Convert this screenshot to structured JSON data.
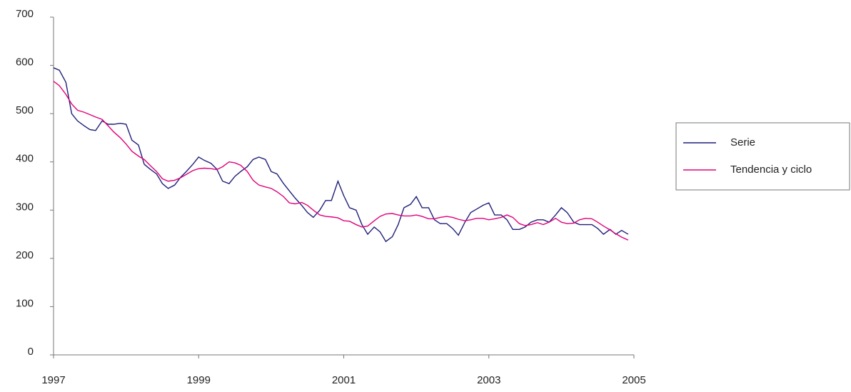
{
  "chart_data": {
    "type": "line",
    "x": [
      1997,
      1997.08,
      1997.17,
      1997.25,
      1997.33,
      1997.42,
      1997.5,
      1997.58,
      1997.67,
      1997.75,
      1997.83,
      1997.92,
      1998,
      1998.08,
      1998.17,
      1998.25,
      1998.33,
      1998.42,
      1998.5,
      1998.58,
      1998.67,
      1998.75,
      1998.83,
      1998.92,
      1999,
      1999.08,
      1999.17,
      1999.25,
      1999.33,
      1999.42,
      1999.5,
      1999.58,
      1999.67,
      1999.75,
      1999.83,
      1999.92,
      2000,
      2000.08,
      2000.17,
      2000.25,
      2000.33,
      2000.42,
      2000.5,
      2000.58,
      2000.67,
      2000.75,
      2000.83,
      2000.92,
      2001,
      2001.08,
      2001.17,
      2001.25,
      2001.33,
      2001.42,
      2001.5,
      2001.58,
      2001.67,
      2001.75,
      2001.83,
      2001.92,
      2002,
      2002.08,
      2002.17,
      2002.25,
      2002.33,
      2002.42,
      2002.5,
      2002.58,
      2002.67,
      2002.75,
      2002.83,
      2002.92,
      2003,
      2003.08,
      2003.17,
      2003.25,
      2003.33,
      2003.42,
      2003.5,
      2003.58,
      2003.67,
      2003.75,
      2003.83,
      2003.92,
      2004,
      2004.08,
      2004.17,
      2004.25,
      2004.33,
      2004.42,
      2004.5,
      2004.58,
      2004.67,
      2004.75,
      2004.83,
      2004.92
    ],
    "series": [
      {
        "name": "Serie",
        "color": "#1f1f7a",
        "values": [
          595,
          590,
          565,
          500,
          485,
          475,
          467,
          465,
          485,
          478,
          478,
          480,
          478,
          445,
          435,
          395,
          385,
          375,
          355,
          345,
          352,
          368,
          380,
          395,
          410,
          403,
          397,
          385,
          360,
          355,
          370,
          380,
          390,
          405,
          410,
          405,
          380,
          375,
          355,
          340,
          325,
          310,
          295,
          285,
          300,
          320,
          320,
          360,
          330,
          305,
          300,
          270,
          250,
          265,
          255,
          235,
          245,
          270,
          305,
          312,
          328,
          305,
          305,
          280,
          272,
          272,
          262,
          248,
          275,
          295,
          302,
          310,
          315,
          290,
          290,
          280,
          260,
          260,
          265,
          275,
          280,
          280,
          275,
          290,
          305,
          295,
          275,
          270,
          270,
          270,
          262,
          250,
          260,
          250,
          258,
          250
        ]
      },
      {
        "name": "Tendencia y ciclo",
        "color": "#e0007a",
        "values": [
          567,
          558,
          540,
          520,
          507,
          503,
          498,
          493,
          488,
          475,
          462,
          450,
          437,
          422,
          412,
          405,
          393,
          380,
          365,
          360,
          362,
          367,
          374,
          382,
          386,
          387,
          386,
          384,
          390,
          400,
          398,
          393,
          380,
          362,
          352,
          348,
          345,
          338,
          328,
          315,
          313,
          316,
          310,
          300,
          290,
          287,
          286,
          284,
          278,
          277,
          270,
          265,
          267,
          278,
          287,
          292,
          293,
          290,
          288,
          288,
          290,
          287,
          282,
          282,
          285,
          287,
          285,
          281,
          278,
          280,
          283,
          283,
          280,
          282,
          285,
          290,
          285,
          272,
          268,
          270,
          274,
          270,
          275,
          283,
          275,
          272,
          273,
          280,
          283,
          282,
          275,
          267,
          259,
          251,
          244,
          238
        ]
      }
    ],
    "xlim": [
      1997,
      2005
    ],
    "xticks": [
      1997,
      1999,
      2001,
      2003,
      2005
    ],
    "ylim": [
      0,
      700
    ],
    "yticks": [
      0,
      100,
      200,
      300,
      400,
      500,
      600,
      700
    ],
    "legend": "right"
  }
}
